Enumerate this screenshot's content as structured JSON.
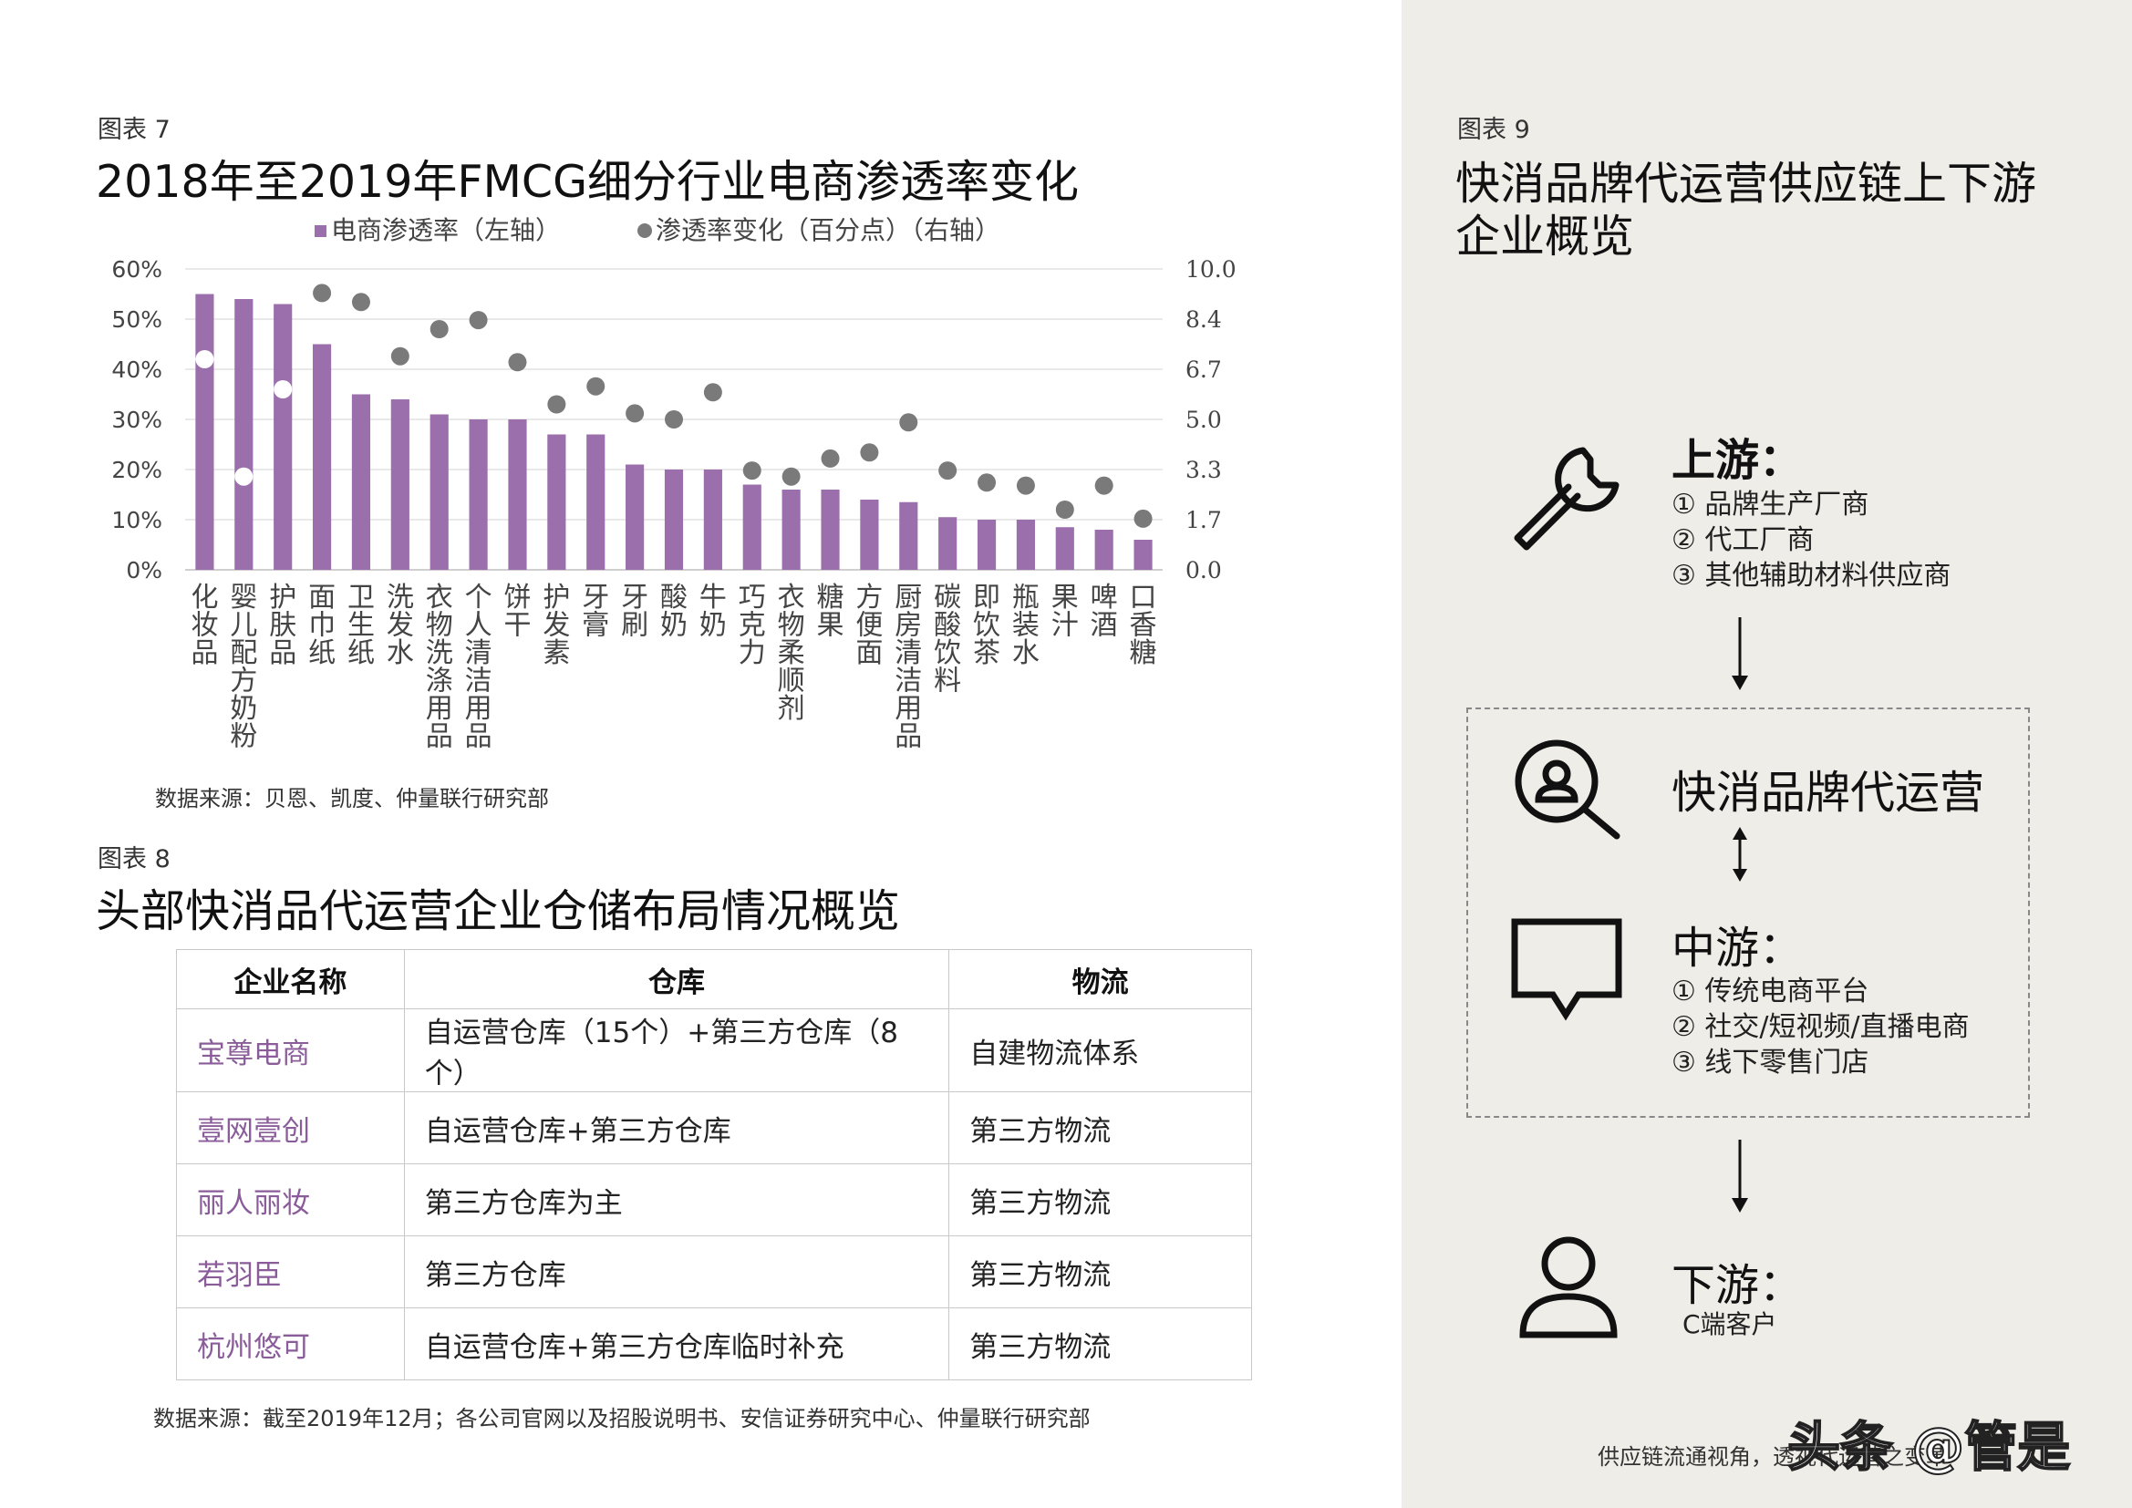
{
  "fig7": {
    "label": "图表 7",
    "title": "2018年至2019年FMCG细分行业电商渗透率变化",
    "source": "数据来源：贝恩、凯度、仲量联行研究部"
  },
  "chart_data": {
    "type": "bar",
    "title": "2018年至2019年FMCG细分行业电商渗透率变化",
    "legend": [
      "电商渗透率（左轴）",
      "渗透率变化（百分点）（右轴）"
    ],
    "legend_position": "top",
    "categories": [
      "化妆品",
      "婴儿配方奶粉",
      "护肤品",
      "面巾纸",
      "卫生纸",
      "洗发水",
      "衣物洗涤用品",
      "个人清洁用品",
      "饼干",
      "护发素",
      "牙膏",
      "牙刷",
      "酸奶",
      "牛奶",
      "巧克力",
      "衣物柔顺剂",
      "糖果",
      "方便面",
      "厨房清洁用品",
      "碳酸饮料",
      "即饮茶",
      "瓶装水",
      "果汁",
      "啤酒",
      "口香糖"
    ],
    "series": [
      {
        "name": "电商渗透率（左轴）",
        "axis": "left",
        "kind": "bar",
        "color": "#9b6fab",
        "values": [
          55,
          54,
          53,
          45,
          35,
          34,
          31,
          30,
          30,
          27,
          27,
          21,
          20,
          20,
          17,
          16,
          16,
          14,
          13.5,
          10.5,
          10,
          10,
          8.5,
          8,
          6
        ]
      },
      {
        "name": "渗透率变化（百分点）（右轴）",
        "axis": "right",
        "kind": "scatter",
        "color": "#7a7a7a",
        "values": [
          7.0,
          3.1,
          6.0,
          9.2,
          8.9,
          7.1,
          8.0,
          8.3,
          6.9,
          5.5,
          6.1,
          5.2,
          5.0,
          5.9,
          3.3,
          3.1,
          3.7,
          3.9,
          4.9,
          3.3,
          2.9,
          2.8,
          2.0,
          2.8,
          1.7
        ]
      }
    ],
    "y_left": {
      "ylim": [
        0,
        60
      ],
      "ticks": [
        "0%",
        "10%",
        "20%",
        "30%",
        "40%",
        "50%",
        "60%"
      ]
    },
    "y_right": {
      "ylim": [
        0,
        10
      ],
      "ticks": [
        "0.0",
        "1.7",
        "3.3",
        "5.0",
        "6.7",
        "8.4",
        "10.0"
      ]
    },
    "grid": true
  },
  "fig8": {
    "label": "图表 8",
    "title": "头部快消品代运营企业仓储布局情况概览",
    "headers": [
      "企业名称",
      "仓库",
      "物流"
    ],
    "rows": [
      [
        "宝尊电商",
        "自运营仓库（15个）+第三方仓库（8个）",
        "自建物流体系"
      ],
      [
        "壹网壹创",
        "自运营仓库+第三方仓库",
        "第三方物流"
      ],
      [
        "丽人丽妆",
        "第三方仓库为主",
        "第三方物流"
      ],
      [
        "若羽臣",
        "第三方仓库",
        "第三方物流"
      ],
      [
        "杭州悠可",
        "自运营仓库+第三方仓库临时补充",
        "第三方物流"
      ]
    ],
    "source": "数据来源：截至2019年12月；各公司官网以及招股说明书、安信证券研究中心、仲量联行研究部"
  },
  "fig9": {
    "label": "图表 9",
    "title_line1": "快消品牌代运营供应链上下游",
    "title_line2": "企业概览",
    "upstream": {
      "icon": "wrench-icon",
      "title": "上游：",
      "items": [
        "① 品牌生产厂商",
        "② 代工厂商",
        "③ 其他辅助材料供应商"
      ]
    },
    "operator": {
      "icon": "person-search-icon",
      "title": "快消品牌代运营"
    },
    "midstream": {
      "icon": "chat-bubble-icon",
      "title": "中游：",
      "items": [
        "① 传统电商平台",
        "② 社交/短视频/直播电商",
        "③ 线下零售门店"
      ]
    },
    "downstream": {
      "icon": "user-icon",
      "title": "下游：",
      "items": [
        "C端客户"
      ]
    }
  },
  "footer": {
    "text": "供应链流通视角，透视代运营之变革",
    "watermark": "头条 @管是"
  }
}
